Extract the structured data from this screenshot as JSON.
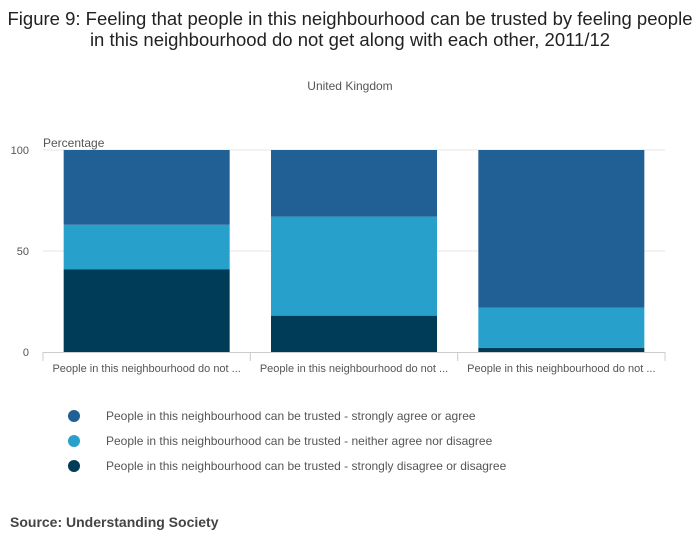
{
  "title": "Figure 9: Feeling that people in this neighbourhood can be trusted by feeling people in this neighbourhood do not get along with each other, 2011/12",
  "subtitle": "United Kingdom",
  "source": "Source: Understanding Society",
  "chart_data": {
    "type": "bar",
    "stacked": true,
    "ylabel": "Percentage",
    "ylim": [
      0,
      100
    ],
    "yticks": [
      0,
      50,
      100
    ],
    "grid": true,
    "categories": [
      "People in this neighbourhood do not ...",
      "People in this neighbourhood do not ...",
      "People in this neighbourhood do not ..."
    ],
    "series": [
      {
        "name": "People in this neighbourhood can be trusted - strongly disagree or disagree",
        "color": "#003c57",
        "values": [
          41,
          18,
          2
        ]
      },
      {
        "name": "People in this neighbourhood can be trusted - neither agree nor disagree",
        "color": "#27a0cc",
        "values": [
          22,
          49,
          20
        ]
      },
      {
        "name": "People in this neighbourhood can be trusted - strongly agree or agree",
        "color": "#206095",
        "values": [
          37,
          33,
          78
        ]
      }
    ],
    "legend": [
      {
        "name": "People in this neighbourhood can be trusted - strongly agree or agree",
        "color": "#206095"
      },
      {
        "name": "People in this neighbourhood can be trusted - neither agree nor disagree",
        "color": "#27a0cc"
      },
      {
        "name": "People in this neighbourhood can be trusted - strongly disagree or disagree",
        "color": "#003c57"
      }
    ]
  }
}
